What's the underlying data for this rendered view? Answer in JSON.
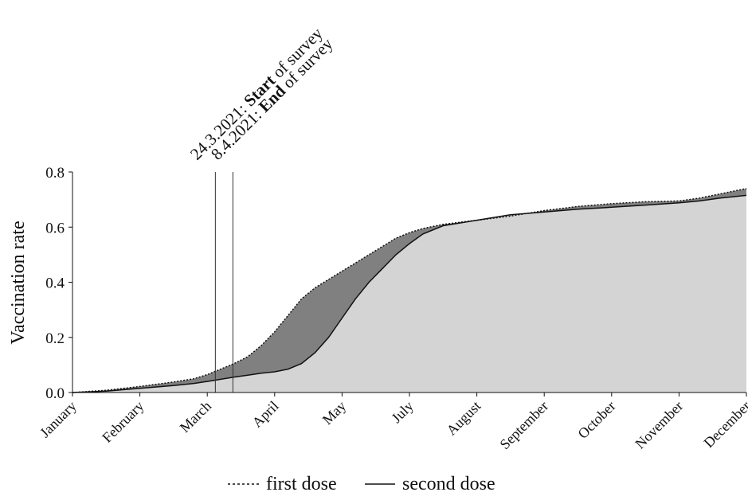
{
  "chart_data": {
    "type": "area",
    "ylabel": "Vaccination rate",
    "xlabel": "",
    "ylim": [
      0,
      0.8
    ],
    "yticks": [
      0.0,
      0.2,
      0.4,
      0.6,
      0.8
    ],
    "ytick_labels": [
      "0.0",
      "0.2",
      "0.4",
      "0.6",
      "0.8"
    ],
    "xtick_labels": [
      "January",
      "February",
      "March",
      "April",
      "May",
      "July",
      "August",
      "September",
      "October",
      "November",
      "December"
    ],
    "grid": false,
    "legend_position": "bottom",
    "legend": {
      "first_dose": "first dose",
      "second_dose": "second dose"
    },
    "annotations": [
      {
        "prefix": "24.3.2021: ",
        "bold": "Start",
        "suffix": " of survey",
        "x_index": 2.12
      },
      {
        "prefix": "8.4.2021: ",
        "bold": "End",
        "suffix": " of survey",
        "x_index": 2.38
      }
    ],
    "x_domain": [
      0,
      10
    ],
    "series": [
      {
        "name": "first dose",
        "x": [
          0,
          0.5,
          1,
          1.5,
          1.8,
          2.0,
          2.2,
          2.4,
          2.6,
          2.8,
          3.0,
          3.2,
          3.4,
          3.6,
          3.8,
          4.0,
          4.2,
          4.4,
          4.6,
          4.8,
          5.0,
          5.2,
          5.5,
          6.0,
          6.5,
          7.0,
          7.5,
          8.0,
          8.5,
          9.0,
          9.3,
          9.6,
          10.0
        ],
        "values": [
          0.0,
          0.008,
          0.022,
          0.038,
          0.05,
          0.065,
          0.085,
          0.105,
          0.13,
          0.17,
          0.22,
          0.28,
          0.34,
          0.38,
          0.41,
          0.44,
          0.47,
          0.5,
          0.53,
          0.56,
          0.58,
          0.595,
          0.61,
          0.625,
          0.64,
          0.66,
          0.675,
          0.685,
          0.692,
          0.695,
          0.705,
          0.72,
          0.74
        ]
      },
      {
        "name": "second dose",
        "x": [
          0,
          0.5,
          1,
          1.5,
          1.8,
          2.0,
          2.2,
          2.4,
          2.6,
          2.8,
          3.0,
          3.2,
          3.4,
          3.6,
          3.8,
          4.0,
          4.2,
          4.4,
          4.6,
          4.8,
          5.0,
          5.2,
          5.5,
          6.0,
          6.5,
          7.0,
          7.5,
          8.0,
          8.5,
          9.0,
          9.3,
          9.6,
          10.0
        ],
        "values": [
          0.0,
          0.005,
          0.015,
          0.025,
          0.033,
          0.04,
          0.048,
          0.056,
          0.063,
          0.07,
          0.075,
          0.085,
          0.105,
          0.145,
          0.2,
          0.27,
          0.34,
          0.4,
          0.45,
          0.5,
          0.54,
          0.575,
          0.605,
          0.625,
          0.645,
          0.655,
          0.665,
          0.672,
          0.68,
          0.688,
          0.695,
          0.705,
          0.715
        ]
      }
    ]
  },
  "colors": {
    "first_dose_fill": "#808080",
    "second_dose_fill": "#d4d4d4",
    "axis": "#111111",
    "survey_lines": "#333333"
  }
}
